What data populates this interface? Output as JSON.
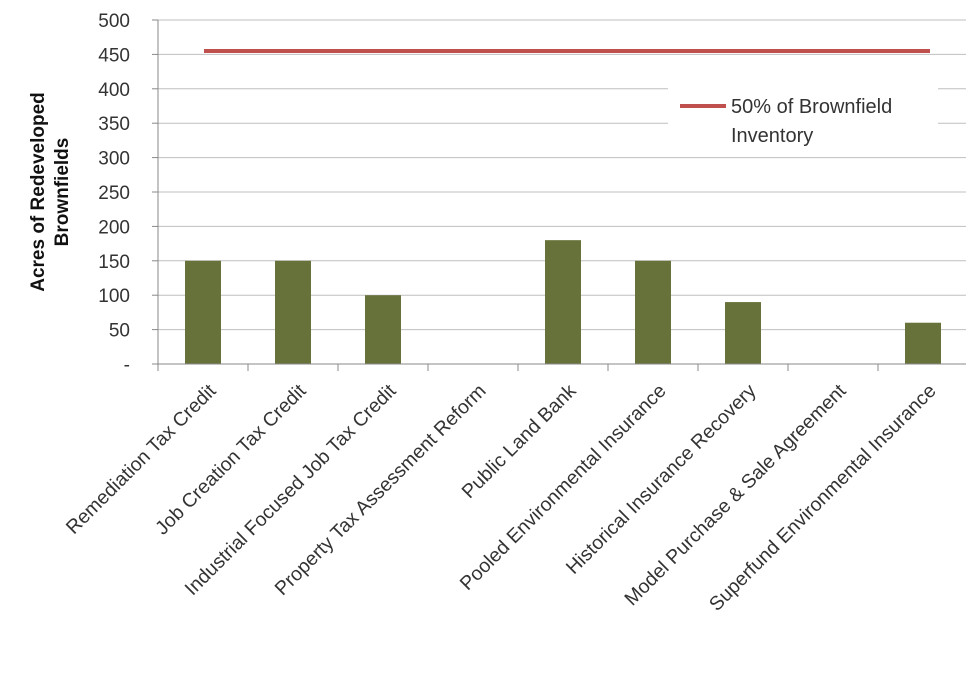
{
  "chart_data": {
    "type": "bar",
    "title": "",
    "xlabel": "",
    "ylabel_lines": [
      "Acres of Redeveloped",
      "Brownfields"
    ],
    "ylim": [
      0,
      500
    ],
    "yticks": [
      0,
      50,
      100,
      150,
      200,
      250,
      300,
      350,
      400,
      450,
      500
    ],
    "ytick_labels": [
      "-",
      "50",
      "100",
      "150",
      "200",
      "250",
      "300",
      "350",
      "400",
      "450",
      "500"
    ],
    "grid": true,
    "categories": [
      "Remediation Tax Credit",
      "Job Creation Tax Credit",
      "Industrial Focused Job Tax Credit",
      "Property Tax Assessment Reform",
      "Public Land Bank",
      "Pooled Environmental Insurance",
      "Historical Insurance Recovery",
      "Model Purchase & Sale Agreement",
      "Superfund Environmental Insurance"
    ],
    "values": [
      150,
      150,
      100,
      0,
      180,
      150,
      90,
      0,
      60
    ],
    "bar_color": "#66723a",
    "reference_line": {
      "value": 455,
      "color": "#c0504d",
      "legend_lines": [
        "50% of Brownfield",
        "Inventory"
      ]
    },
    "legend_position": "top-right"
  }
}
